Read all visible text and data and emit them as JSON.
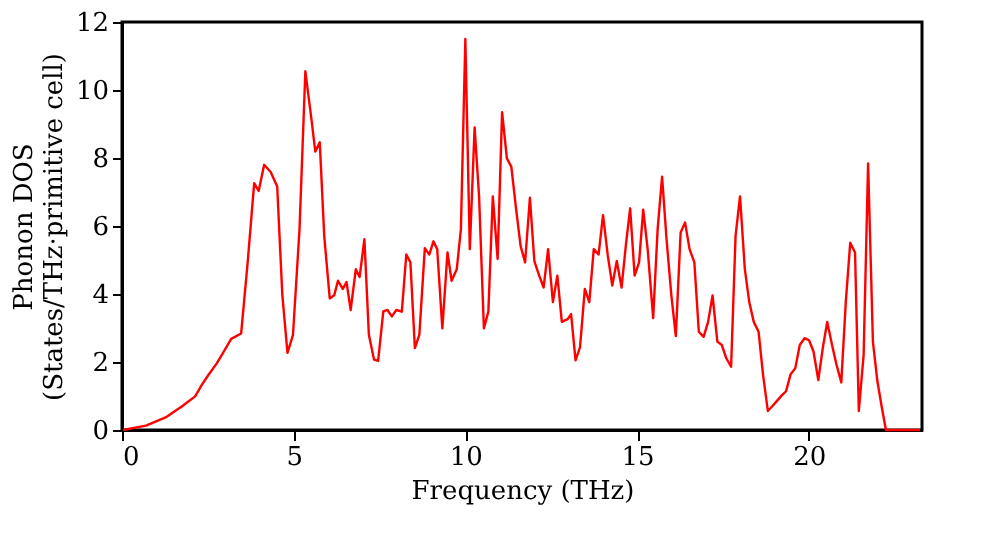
{
  "chart_data": {
    "type": "line",
    "xlabel": "Frequency (THz)",
    "ylabel": "Phonon DOS\n(States/THz·primitive cell)",
    "xlim": [
      0,
      23.3
    ],
    "xticks": [
      0,
      5,
      10,
      15,
      20
    ],
    "ylim": [
      0,
      12
    ],
    "yticks": [
      0,
      2,
      4,
      6,
      8,
      10,
      12
    ],
    "grid": false,
    "legend": false,
    "marker": "none",
    "line_style": "solid",
    "x": [
      0.03,
      0.7,
      1.27,
      1.75,
      2.13,
      2.32,
      2.51,
      2.76,
      2.99,
      3.18,
      3.47,
      3.66,
      3.85,
      3.98,
      4.14,
      4.33,
      4.52,
      4.67,
      4.82,
      4.98,
      5.17,
      5.34,
      5.51,
      5.63,
      5.76,
      5.89,
      6.05,
      6.18,
      6.29,
      6.43,
      6.54,
      6.66,
      6.81,
      6.92,
      7.06,
      7.19,
      7.34,
      7.46,
      7.61,
      7.73,
      7.86,
      7.99,
      8.15,
      8.28,
      8.4,
      8.53,
      8.66,
      8.82,
      8.95,
      9.07,
      9.18,
      9.33,
      9.48,
      9.6,
      9.75,
      9.87,
      10.0,
      10.13,
      10.27,
      10.4,
      10.54,
      10.67,
      10.8,
      10.94,
      11.07,
      11.21,
      11.34,
      11.48,
      11.61,
      11.74,
      11.88,
      12.01,
      12.15,
      12.28,
      12.41,
      12.55,
      12.68,
      12.81,
      12.98,
      13.08,
      13.21,
      13.34,
      13.48,
      13.61,
      13.74,
      13.88,
      14.01,
      14.15,
      14.28,
      14.41,
      14.55,
      14.68,
      14.8,
      14.93,
      15.06,
      15.18,
      15.31,
      15.47,
      15.6,
      15.73,
      15.86,
      16.0,
      16.13,
      16.27,
      16.4,
      16.53,
      16.67,
      16.8,
      16.94,
      17.07,
      17.2,
      17.34,
      17.47,
      17.6,
      17.74,
      17.87,
      18.0,
      18.14,
      18.27,
      18.4,
      18.54,
      18.67,
      18.81,
      18.94,
      19.07,
      19.21,
      19.34,
      19.47,
      19.61,
      19.74,
      19.88,
      20.01,
      20.14,
      20.28,
      20.41,
      20.54,
      20.68,
      20.81,
      20.95,
      21.08,
      21.21,
      21.35,
      21.46,
      21.6,
      21.73,
      21.87,
      22.0,
      22.13,
      22.25,
      23.24
    ],
    "series": [
      {
        "color": "#ff0000",
        "values": [
          0,
          0.13,
          0.37,
          0.7,
          0.99,
          1.32,
          1.61,
          1.96,
          2.35,
          2.68,
          2.84,
          4.93,
          7.26,
          7.03,
          7.8,
          7.59,
          7.16,
          3.96,
          2.27,
          2.8,
          5.9,
          10.55,
          9.2,
          8.19,
          8.46,
          5.71,
          3.87,
          3.96,
          4.39,
          4.15,
          4.35,
          3.53,
          4.73,
          4.5,
          5.61,
          2.8,
          2.07,
          2.03,
          3.49,
          3.53,
          3.34,
          3.53,
          3.48,
          5.16,
          4.93,
          2.41,
          2.8,
          5.35,
          5.16,
          5.55,
          5.32,
          2.99,
          5.22,
          4.39,
          4.73,
          5.9,
          11.5,
          5.32,
          8.9,
          6.87,
          2.99,
          3.48,
          6.87,
          5.03,
          9.35,
          7.99,
          7.74,
          6.48,
          5.41,
          4.93,
          6.83,
          4.97,
          4.54,
          4.19,
          5.32,
          3.76,
          4.54,
          3.18,
          3.26,
          3.41,
          2.05,
          2.44,
          4.15,
          3.76,
          5.32,
          5.16,
          6.32,
          5.12,
          4.25,
          4.97,
          4.19,
          5.48,
          6.52,
          4.54,
          4.93,
          6.48,
          5.32,
          3.29,
          5.9,
          7.45,
          5.61,
          3.96,
          2.76,
          5.81,
          6.1,
          5.32,
          4.93,
          2.89,
          2.74,
          3.18,
          3.96,
          2.6,
          2.5,
          2.11,
          1.86,
          5.71,
          6.87,
          4.73,
          3.76,
          3.18,
          2.89,
          1.63,
          0.56,
          0.7,
          0.85,
          1.01,
          1.14,
          1.63,
          1.82,
          2.5,
          2.7,
          2.64,
          2.31,
          1.47,
          2.41,
          3.18,
          2.5,
          1.92,
          1.4,
          3.76,
          5.51,
          5.22,
          0.56,
          2.21,
          7.84,
          2.6,
          1.44,
          0.66,
          0,
          0
        ]
      }
    ]
  }
}
